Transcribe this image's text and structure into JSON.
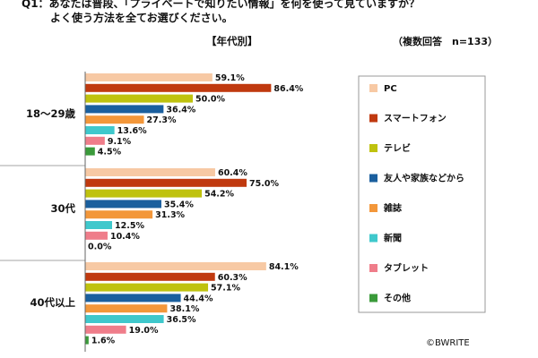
{
  "header": {
    "question_line1": "Q1：あなたは普段、「プライベートで知りたい情報」を何を使って見ていますか？",
    "question_line2": "よく使う方法を全てお選びください。",
    "subtitle": "【年代別】",
    "note": "（複数回答　n=133）"
  },
  "copyright": "©BWRITE",
  "chart_data": {
    "type": "bar",
    "orientation": "horizontal",
    "title": "Q1：あなたは普段、「プライベートで知りたい情報」を何を使って見ていますか？ よく使う方法を全てお選びください。",
    "subtitle": "【年代別】",
    "categories": [
      "18～29歳",
      "30代",
      "40代以上"
    ],
    "series": [
      {
        "name": "PC",
        "color": "#f7c9a4",
        "values": [
          59.1,
          60.4,
          84.1
        ]
      },
      {
        "name": "スマートフォン",
        "color": "#c0390f",
        "values": [
          86.4,
          75.0,
          60.3
        ]
      },
      {
        "name": "テレビ",
        "color": "#bfc20e",
        "values": [
          50.0,
          54.2,
          57.1
        ]
      },
      {
        "name": "友人や家族などから",
        "color": "#1a5f9e",
        "values": [
          36.4,
          35.4,
          44.4
        ]
      },
      {
        "name": "雑誌",
        "color": "#f3973a",
        "values": [
          27.3,
          31.3,
          38.1
        ]
      },
      {
        "name": "新聞",
        "color": "#3fc8cc",
        "values": [
          13.6,
          12.5,
          36.5
        ]
      },
      {
        "name": "タブレット",
        "color": "#ef7d8a",
        "values": [
          9.1,
          10.4,
          19.0
        ]
      },
      {
        "name": "その他",
        "color": "#3a9a3a",
        "values": [
          4.5,
          0.0,
          1.6
        ]
      }
    ],
    "value_format": "%",
    "xlim": [
      0,
      100
    ],
    "legend_position": "right",
    "grid": false
  }
}
